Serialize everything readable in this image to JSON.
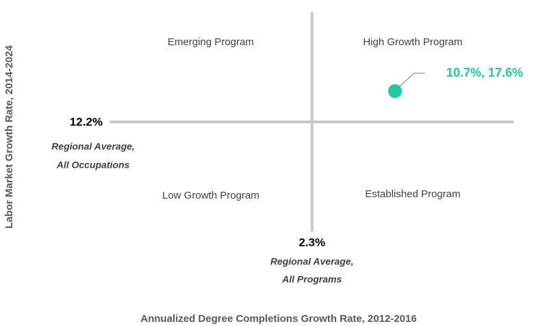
{
  "chart_data": {
    "type": "scatter",
    "x_label": "Annualized Degree Completions Growth Rate, 2012-2016",
    "y_label": "Labor Market Growth Rate, 2014-2024",
    "xlim": [
      -18.2,
      22.7
    ],
    "ylim": [
      -7,
      31.4
    ],
    "quadrants": [
      {
        "label": "Emerging Program",
        "corner": "top-left"
      },
      {
        "label": "High Growth Program",
        "corner": "top-right"
      },
      {
        "label": "Low Growth Program",
        "corner": "bottom-left"
      },
      {
        "label": "Established Program",
        "corner": "bottom-right"
      }
    ],
    "xref": {
      "value": 2.3,
      "label": "2.3%",
      "caption": [
        "Regional Average,",
        "All Programs"
      ]
    },
    "yref": {
      "value": 12.2,
      "label": "12.2%",
      "caption": [
        "Regional Average,",
        "All Occupations"
      ]
    },
    "series": [
      {
        "color": "#1ecba0",
        "x": [
          10.7
        ],
        "values": [
          17.6
        ],
        "value_labels": [
          "10.7%, 17.6%"
        ]
      }
    ]
  }
}
